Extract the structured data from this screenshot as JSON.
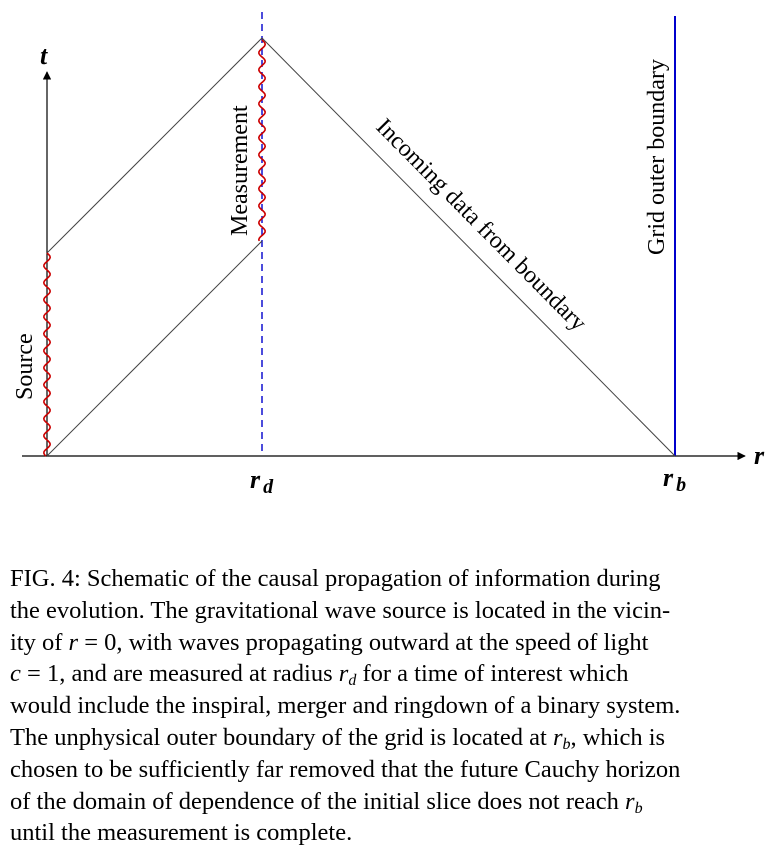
{
  "figure": {
    "axis_t": "t",
    "axis_r": "r",
    "tick_rd_main": "r",
    "tick_rd_sub": "d",
    "tick_rb_main": "r",
    "tick_rb_sub": "b",
    "label_source": "Source",
    "label_measurement": "Measurement",
    "label_incoming": "Incoming data from boundary",
    "label_grid": "Grid outer boundary",
    "colors": {
      "wave": "#cc0000",
      "boundary": "#0000cc",
      "dashed": "#0000cc",
      "lines": "#444444"
    }
  },
  "caption": {
    "l1": "FIG. 4: Schematic of the causal propagation of information during",
    "l2": "the evolution. The gravitational wave source is located in the vicin-",
    "l3a": "ity of ",
    "l3_var": "r",
    "l3b": " = 0, with waves propagating outward at the speed of light",
    "l4_var": "c",
    "l4b": " = 1, and are measured at radius ",
    "l4_var2": "r",
    "l4_sub": "d",
    "l4c": " for a time of interest which",
    "l5": "would include the inspiral, merger and ringdown of a binary system.",
    "l6a": "The unphysical outer boundary of the grid is located at ",
    "l6_var": "r",
    "l6_sub": "b",
    "l6b": ", which is",
    "l7": "chosen to be sufficiently far removed that the future Cauchy horizon",
    "l8a": "of the domain of dependence of the initial slice does not reach ",
    "l8_var": "r",
    "l8_sub": "b",
    "l9": "until the measurement is complete."
  }
}
